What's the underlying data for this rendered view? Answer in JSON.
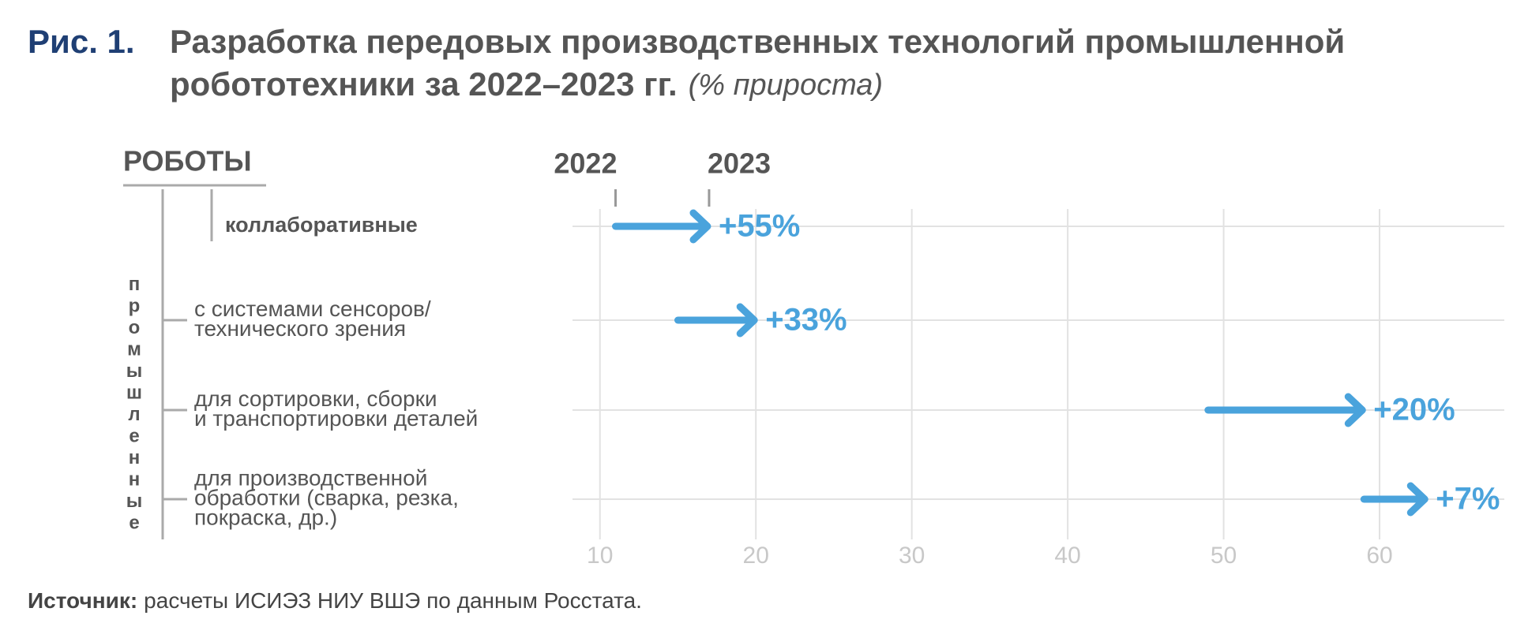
{
  "chart_data": {
    "type": "arrow",
    "figure_label": "Рис. 1.",
    "title": [
      "Разработка передовых производственных технологий промышленной",
      "робототехники за 2022–2023 гг."
    ],
    "subtitle": "(% прироста)",
    "header": "РОБОТЫ",
    "group_label": "промышленные",
    "categories": [
      [
        "коллаборативные"
      ],
      [
        "с системами сенсоров/",
        "технического зрения"
      ],
      [
        "для сортировки, сборки",
        "и транспортировки деталей"
      ],
      [
        "для производственной",
        "обработки (сварка, резка,",
        "покраска, др.)"
      ]
    ],
    "series": [
      {
        "name": "2022",
        "color": "#4aa3dc",
        "values": [
          11,
          15,
          49,
          59
        ]
      },
      {
        "name": "2023",
        "color": "#4aa3dc",
        "values": [
          17,
          20,
          59,
          63
        ]
      }
    ],
    "growth": {
      "values": [
        55,
        33,
        20,
        7
      ],
      "value_labels": [
        "+55%",
        "+33%",
        "+20%",
        "+7%"
      ]
    },
    "xlim": [
      9,
      68
    ],
    "xticks": [
      10,
      20,
      30,
      40,
      50,
      60
    ],
    "grid": true,
    "source_label": "Источник:",
    "source": "расчеты ИСИЭЗ НИУ ВШЭ по данным Росстата."
  }
}
